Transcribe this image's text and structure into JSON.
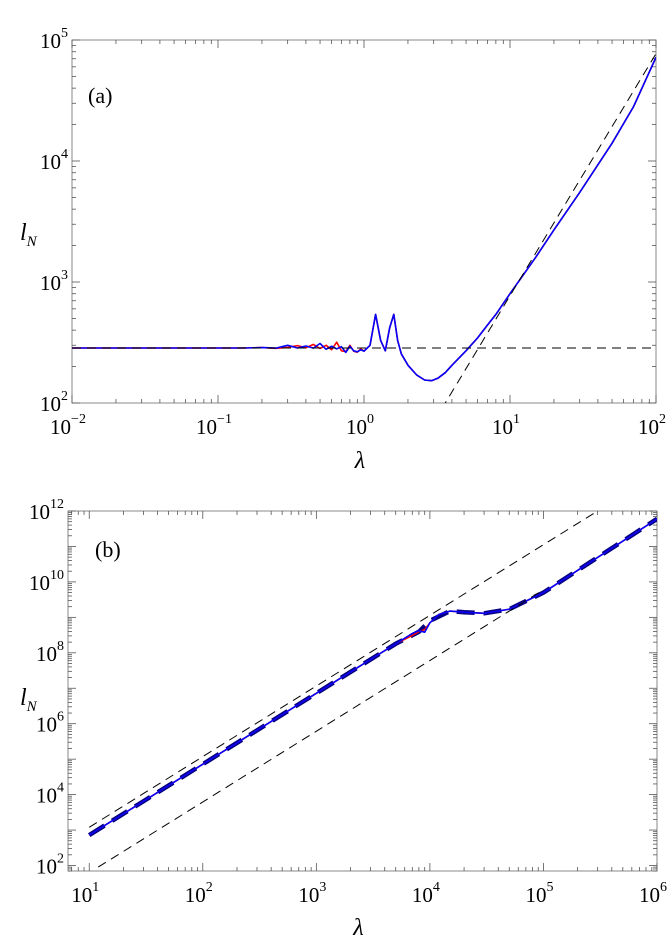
{
  "chart_data": [
    {
      "type": "line",
      "panel_label": "(a)",
      "xlabel": "λ",
      "ylabel_main": "l",
      "ylabel_sub": "N",
      "xscale": "log",
      "yscale": "log",
      "xlim": [
        0.01,
        100
      ],
      "ylim": [
        100,
        100000
      ],
      "x_ticks": [
        {
          "value": 0.01,
          "base": "10",
          "exp": "−2"
        },
        {
          "value": 0.1,
          "base": "10",
          "exp": "−1"
        },
        {
          "value": 1,
          "base": "10",
          "exp": "0"
        },
        {
          "value": 10,
          "base": "10",
          "exp": "1"
        },
        {
          "value": 100,
          "base": "10",
          "exp": "2"
        }
      ],
      "y_ticks": [
        {
          "value": 100,
          "base": "10",
          "exp": "2"
        },
        {
          "value": 1000,
          "base": "10",
          "exp": "3"
        },
        {
          "value": 10000,
          "base": "10",
          "exp": "4"
        },
        {
          "value": 100000,
          "base": "10",
          "exp": "5"
        }
      ],
      "grid": false,
      "series": [
        {
          "color": "#ff0000",
          "style": "solid",
          "x": [
            0.01,
            0.02,
            0.05,
            0.1,
            0.15,
            0.2,
            0.25,
            0.3,
            0.35,
            0.4,
            0.45,
            0.5,
            0.55,
            0.6,
            0.65,
            0.7,
            0.75,
            0.8,
            0.85,
            0.9,
            0.95,
            1.0,
            1.1,
            1.2,
            1.3,
            1.4,
            1.5,
            1.6,
            1.7,
            1.8,
            2.0,
            2.3,
            2.6,
            2.9,
            3.2,
            3.6,
            4.0,
            5.0,
            6.0,
            7.0,
            8.0,
            10,
            15,
            20,
            30,
            50,
            70,
            100
          ],
          "y": [
            285,
            285,
            285,
            285,
            285,
            287,
            283,
            288,
            298,
            286,
            305,
            282,
            300,
            276,
            318,
            270,
            266,
            300,
            268,
            263,
            280,
            268,
            300,
            540,
            330,
            270,
            420,
            540,
            330,
            255,
            205,
            170,
            155,
            153,
            160,
            178,
            205,
            270,
            345,
            440,
            540,
            800,
            1600,
            2700,
            5500,
            14000,
            28000,
            72000
          ]
        },
        {
          "color": "#0000ff",
          "style": "solid",
          "x": [
            0.01,
            0.02,
            0.05,
            0.1,
            0.15,
            0.2,
            0.25,
            0.3,
            0.35,
            0.4,
            0.45,
            0.5,
            0.55,
            0.6,
            0.65,
            0.7,
            0.75,
            0.8,
            0.85,
            0.9,
            0.95,
            1.0,
            1.1,
            1.2,
            1.3,
            1.4,
            1.5,
            1.6,
            1.7,
            1.8,
            2.0,
            2.3,
            2.6,
            2.9,
            3.2,
            3.6,
            4.0,
            5.0,
            6.0,
            7.0,
            8.0,
            10,
            15,
            20,
            30,
            50,
            70,
            100
          ],
          "y": [
            285,
            285,
            285,
            285,
            285,
            287,
            284,
            300,
            285,
            296,
            284,
            310,
            278,
            295,
            280,
            292,
            262,
            295,
            270,
            265,
            275,
            268,
            300,
            540,
            330,
            270,
            420,
            540,
            330,
            255,
            205,
            170,
            155,
            153,
            160,
            178,
            205,
            270,
            345,
            440,
            540,
            800,
            1600,
            2700,
            5500,
            14000,
            28000,
            72000
          ]
        },
        {
          "color": "#000000",
          "style": "dashed",
          "x": [
            0.01,
            100
          ],
          "y": [
            285,
            285
          ]
        },
        {
          "color": "#000000",
          "style": "dashed",
          "x": [
            3.4,
            10,
            100
          ],
          "y": [
            89,
            770,
            77000
          ]
        }
      ]
    },
    {
      "type": "line",
      "panel_label": "(b)",
      "xlabel": "λ",
      "ylabel_main": "l",
      "ylabel_sub": "N",
      "xscale": "log",
      "yscale": "log",
      "xlim": [
        6.5,
        1000000
      ],
      "ylim": [
        70,
        1000000000000
      ],
      "x_ticks": [
        {
          "value": 10,
          "base": "10",
          "exp": "1"
        },
        {
          "value": 100,
          "base": "10",
          "exp": "2"
        },
        {
          "value": 1000,
          "base": "10",
          "exp": "3"
        },
        {
          "value": 10000,
          "base": "10",
          "exp": "4"
        },
        {
          "value": 100000,
          "base": "10",
          "exp": "5"
        },
        {
          "value": 1000000,
          "base": "10",
          "exp": "6"
        }
      ],
      "y_ticks": [
        {
          "value": 100,
          "base": "10",
          "exp": "2"
        },
        {
          "value": 10000,
          "base": "10",
          "exp": "4"
        },
        {
          "value": 1000000,
          "base": "10",
          "exp": "6"
        },
        {
          "value": 100000000,
          "base": "10",
          "exp": "8"
        },
        {
          "value": 10000000000,
          "base": "10",
          "exp": "10"
        },
        {
          "value": 1000000000000,
          "base": "10",
          "exp": "12"
        }
      ],
      "grid": false,
      "series": [
        {
          "color": "#000080",
          "style": "dashed-thick",
          "x": [
            10,
            100,
            1000,
            5000,
            8000,
            10000,
            15000,
            20000,
            30000,
            50000,
            100000,
            1000000
          ],
          "y": [
            720,
            72000,
            7200000,
            180000000,
            390000000,
            800000000,
            1500000000,
            1400000000,
            1300000000,
            1700000000,
            5000000000,
            600000000000
          ]
        },
        {
          "color": "#ff0000",
          "style": "solid",
          "x": [
            10,
            100,
            1000,
            5000,
            7000,
            8000,
            9000,
            10000,
            12000,
            15000,
            20000,
            30000,
            50000,
            100000,
            1000000
          ],
          "y": [
            720,
            72000,
            7200000,
            180000000,
            310000000,
            400000000,
            450000000,
            700000000,
            1200000000,
            1500000000,
            1400000000,
            1300000000,
            1700000000,
            5000000000,
            600000000000
          ]
        },
        {
          "color": "#0000ff",
          "style": "solid",
          "x": [
            10,
            100,
            1000,
            5000,
            7000,
            8000,
            9000,
            10000,
            12000,
            15000,
            20000,
            30000,
            50000,
            100000,
            1000000
          ],
          "y": [
            720,
            72000,
            7200000,
            180000000,
            350000000,
            420000000,
            380000000,
            700000000,
            1200000000,
            1500000000,
            1400000000,
            1300000000,
            1700000000,
            5000000000,
            600000000000
          ]
        },
        {
          "color": "#000000",
          "style": "dashed",
          "x": [
            10,
            300000
          ],
          "y": [
            1200,
            1000000000000
          ]
        },
        {
          "color": "#000000",
          "style": "dashed",
          "x": [
            12,
            100000
          ],
          "y": [
            90,
            6000000000
          ]
        }
      ]
    }
  ]
}
